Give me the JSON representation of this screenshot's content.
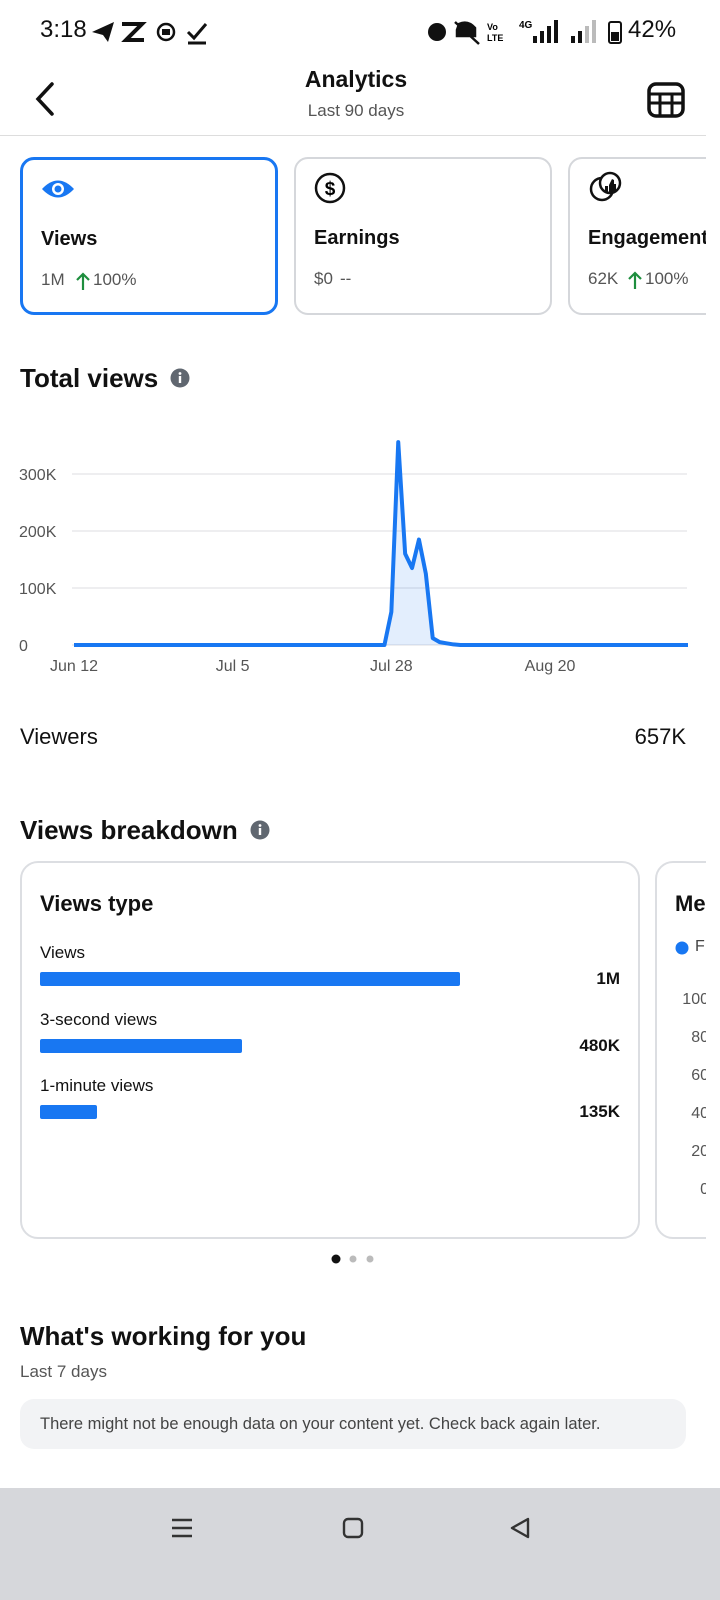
{
  "status_bar": {
    "time": "3:18",
    "battery": "42%"
  },
  "header": {
    "title": "Analytics",
    "subtitle": "Last 90 days"
  },
  "metric_cards": [
    {
      "label": "Views",
      "value": "1M",
      "change": "100%"
    },
    {
      "label": "Earnings",
      "value": "$0",
      "change": "--"
    },
    {
      "label": "Engagement",
      "value": "62K",
      "change": "100%"
    }
  ],
  "total_views": {
    "title": "Total views"
  },
  "viewers": {
    "label": "Viewers",
    "value": "657K"
  },
  "views_breakdown": {
    "title": "Views breakdown",
    "second_card": {
      "title": "Me",
      "legend": "F",
      "ticks": [
        "100",
        "80",
        "60",
        "40",
        "20",
        "0"
      ]
    }
  },
  "whats_working": {
    "title": "What's working for you",
    "subtitle": "Last 7 days",
    "message": "There might not be enough data on your content yet. Check back again later."
  },
  "chart_data": [
    {
      "type": "line",
      "color": "#1877f2",
      "grid": true,
      "categories": [
        "Jun 12",
        null,
        null,
        null,
        null,
        null,
        null,
        null,
        null,
        null,
        null,
        null,
        null,
        null,
        null,
        null,
        null,
        null,
        null,
        null,
        null,
        null,
        null,
        "Jul 5",
        null,
        null,
        null,
        null,
        null,
        null,
        null,
        null,
        null,
        null,
        null,
        null,
        null,
        null,
        null,
        null,
        null,
        null,
        null,
        null,
        null,
        null,
        "Jul 28",
        null,
        null,
        null,
        null,
        null,
        null,
        null,
        null,
        null,
        null,
        null,
        null,
        null,
        null,
        null,
        null,
        null,
        null,
        null,
        null,
        null,
        null,
        "Aug 20",
        null,
        null,
        null,
        null,
        null,
        null,
        null,
        null,
        null,
        null,
        null,
        null,
        null,
        null,
        null,
        null,
        null,
        null,
        null,
        null
      ],
      "values": [
        0,
        0,
        0,
        0,
        0,
        0,
        0,
        0,
        0,
        0,
        0,
        0,
        0,
        0,
        0,
        0,
        0,
        0,
        0,
        0,
        0,
        0,
        0,
        0,
        0,
        0,
        0,
        0,
        0,
        0,
        0,
        0,
        0,
        0,
        0,
        0,
        0,
        0,
        0,
        0,
        0,
        0,
        0,
        0,
        0,
        0,
        58000,
        356000,
        160000,
        135000,
        185000,
        125000,
        12000,
        5000,
        3000,
        1000,
        0,
        0,
        0,
        0,
        0,
        0,
        0,
        0,
        0,
        0,
        0,
        0,
        0,
        0,
        0,
        0,
        0,
        0,
        0,
        0,
        0,
        0,
        0,
        0,
        0,
        0,
        0,
        0,
        0,
        0,
        0,
        0,
        0,
        0
      ],
      "ylim": [
        0,
        360000
      ],
      "yticks": [
        0,
        {
          "value": 100000,
          "label": "100K"
        },
        {
          "value": 200000,
          "label": "200K"
        },
        {
          "value": 300000,
          "label": "300K"
        }
      ]
    },
    {
      "type": "bar",
      "title": "Views type",
      "color": "#1877f2",
      "categories": [
        "Views",
        "3-second views",
        "1-minute views"
      ],
      "values": [
        1000000,
        480000,
        135000
      ],
      "value_labels": [
        "1M",
        "480K",
        "135K"
      ],
      "xlim": [
        0,
        1000000
      ]
    }
  ]
}
